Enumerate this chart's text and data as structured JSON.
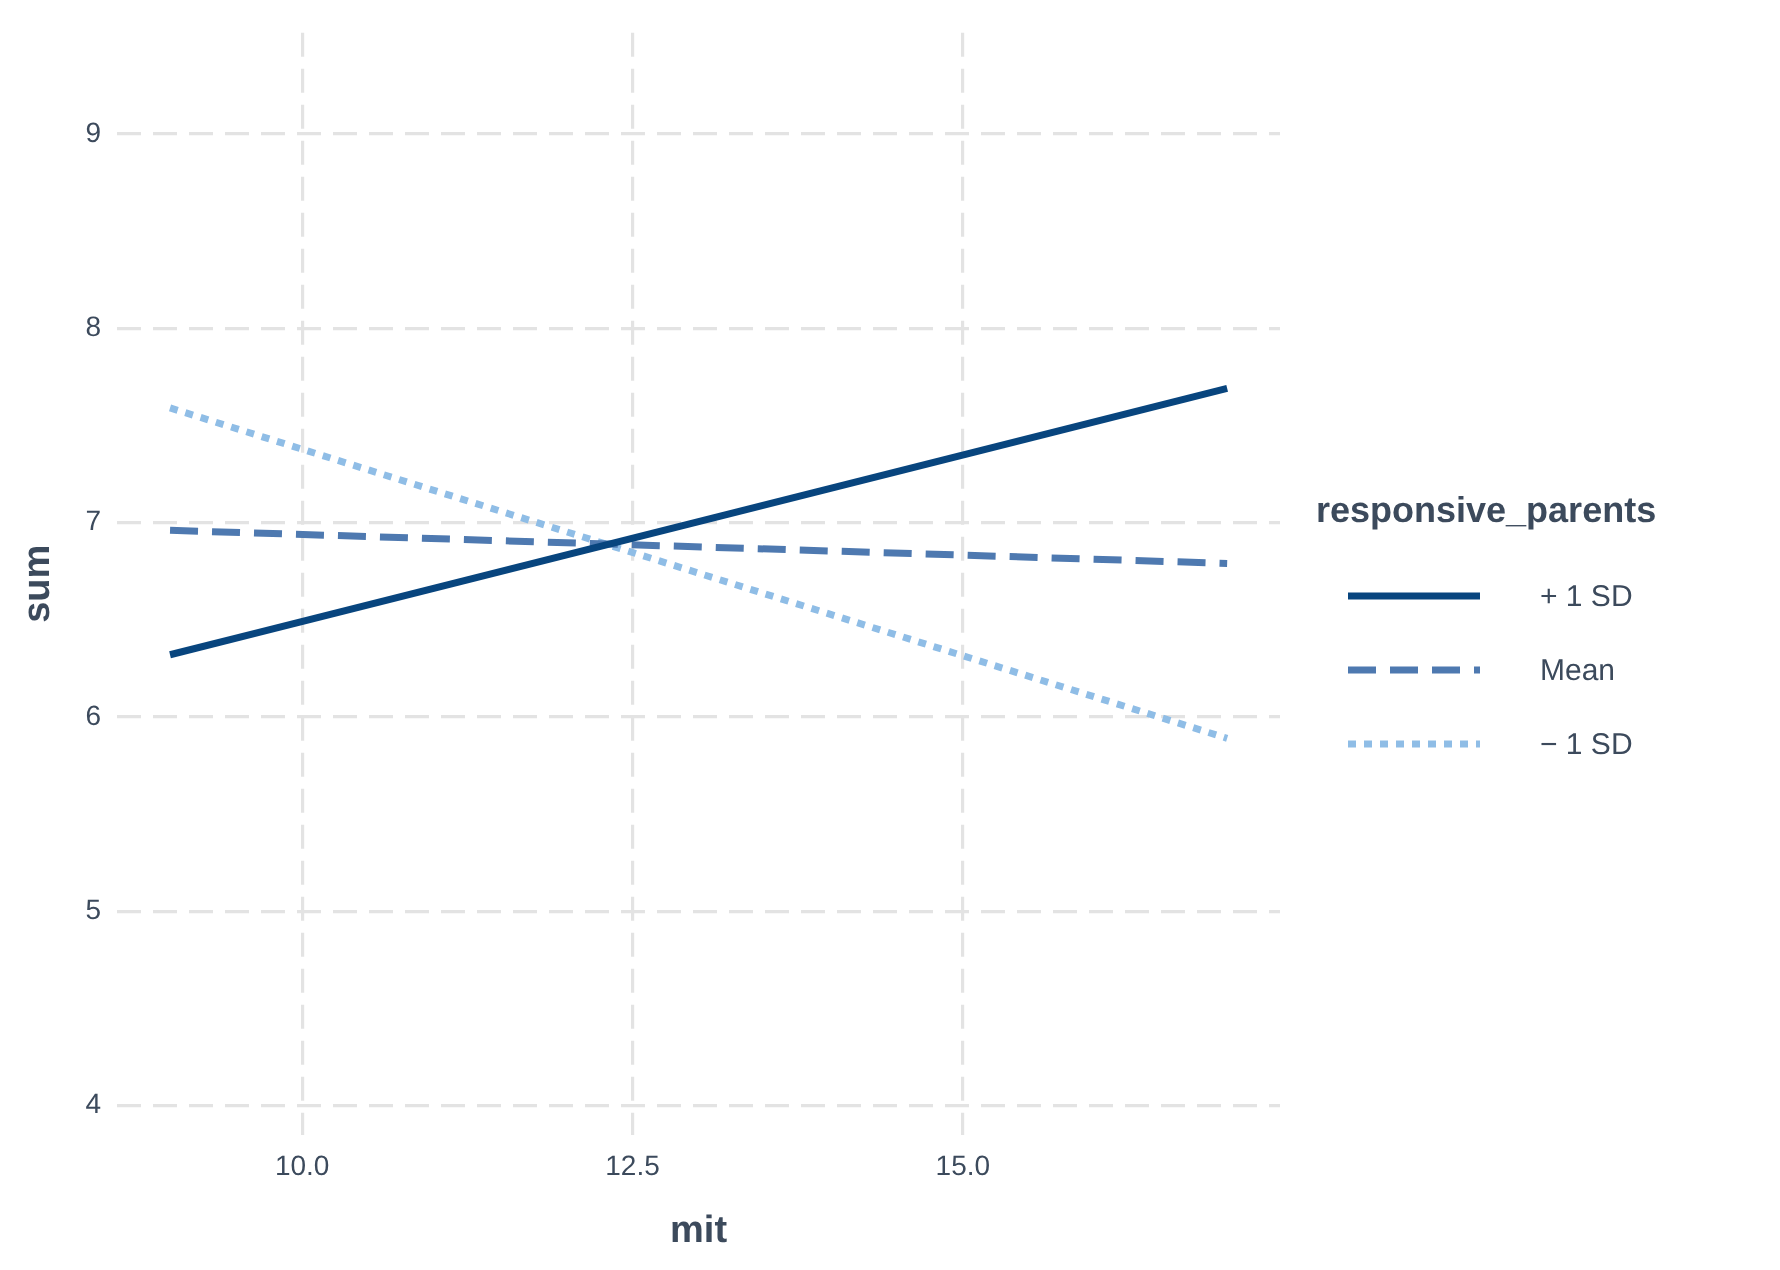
{
  "chart_data": {
    "type": "line",
    "xlabel": "mit",
    "ylabel": "sum",
    "legend_title": "responsive_parents",
    "x": [
      9,
      17
    ],
    "series": [
      {
        "name": "+ 1 SD",
        "color": "#08457e",
        "values": [
          6.32,
          7.69
        ],
        "line_style": "solid"
      },
      {
        "name": "Mean",
        "color": "#4e79b0",
        "values": [
          6.96,
          6.79
        ],
        "line_style": "dashed"
      },
      {
        "name": "− 1 SD",
        "color": "#8fbde6",
        "values": [
          7.59,
          5.89
        ],
        "line_style": "dotted"
      }
    ],
    "xlim": [
      8.6,
      17.4
    ],
    "ylim": [
      3.85,
      9.52
    ],
    "xticks": [
      {
        "value": 10,
        "label": "10.0"
      },
      {
        "value": 12.5,
        "label": "12.5"
      },
      {
        "value": 15,
        "label": "15.0"
      }
    ],
    "yticks": [
      4,
      5,
      6,
      7,
      8,
      9
    ],
    "grid": true,
    "legend": "right",
    "marker": "none"
  }
}
